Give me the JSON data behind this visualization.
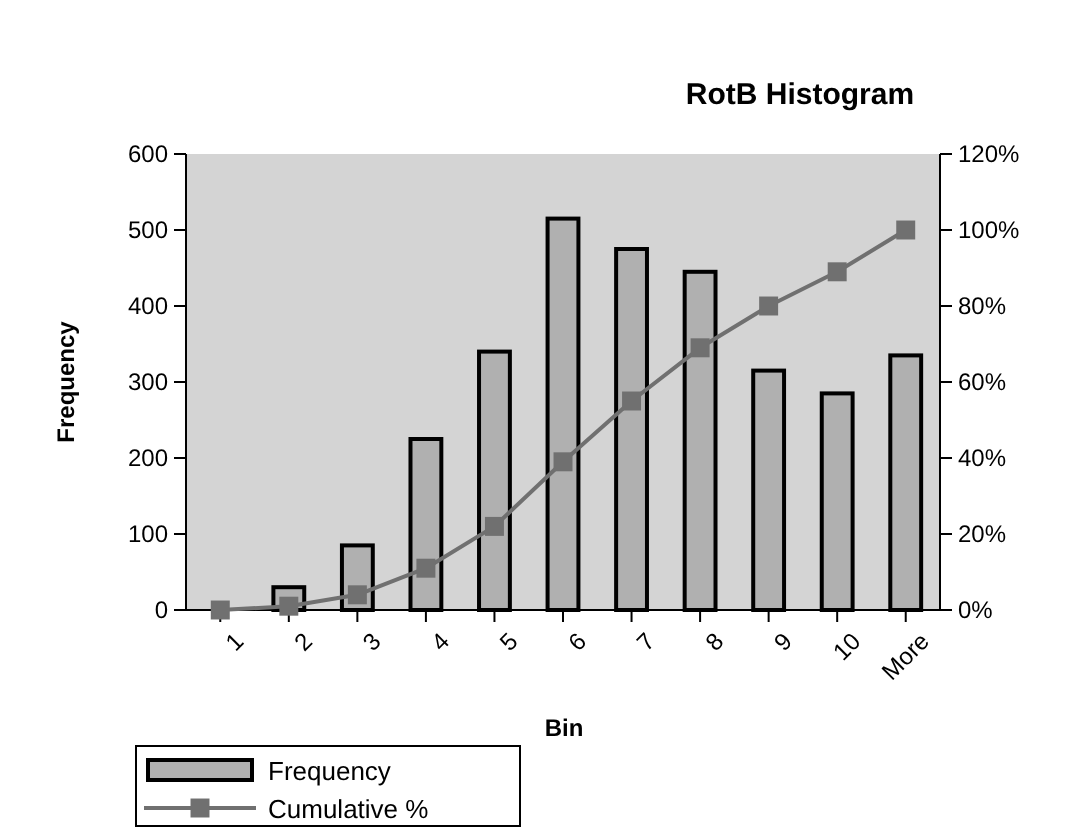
{
  "chart_data": {
    "type": "bar",
    "title": "RotB Histogram",
    "xlabel": "Bin",
    "ylabel": "Frequency",
    "categories": [
      "1",
      "2",
      "3",
      "4",
      "5",
      "6",
      "7",
      "8",
      "9",
      "10",
      "More"
    ],
    "series": [
      {
        "name": "Frequency",
        "color": "#b0b0b0",
        "values": [
          null,
          30,
          85,
          225,
          340,
          515,
          475,
          445,
          315,
          285,
          335
        ]
      },
      {
        "name": "Cumulative %",
        "type": "line",
        "axis": "y2",
        "color": "#707070",
        "marker": "square",
        "values": [
          0,
          1,
          4,
          11,
          22,
          39,
          55,
          69,
          80,
          89,
          100
        ]
      }
    ],
    "ylim": [
      0,
      600
    ],
    "yticks": [
      0,
      100,
      200,
      300,
      400,
      500,
      600
    ],
    "y2lim": [
      0,
      120
    ],
    "y2ticks": [
      {
        "value": 0,
        "label": "0%"
      },
      {
        "value": 20,
        "label": "20%"
      },
      {
        "value": 40,
        "label": "40%"
      },
      {
        "value": 60,
        "label": "60%"
      },
      {
        "value": 80,
        "label": "80%"
      },
      {
        "value": 100,
        "label": "100%"
      },
      {
        "value": 120,
        "label": "120%"
      }
    ],
    "legend": "bottom left",
    "grid": false
  }
}
